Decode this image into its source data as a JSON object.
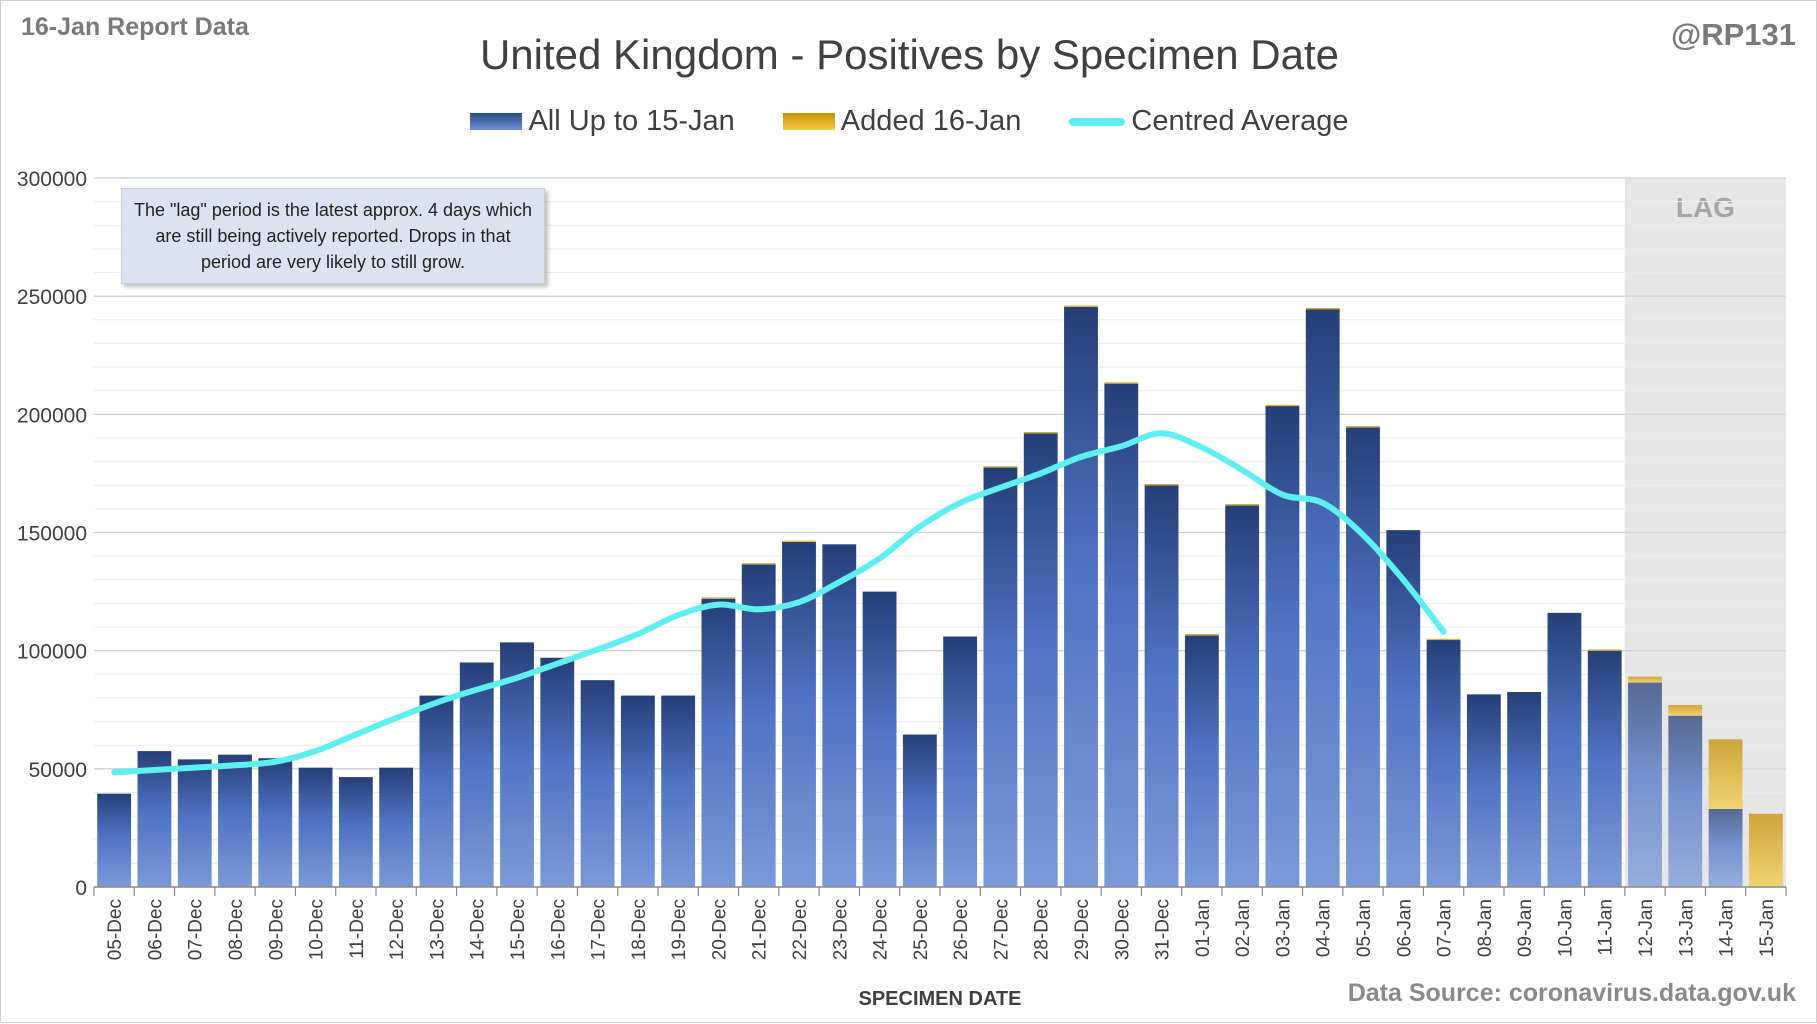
{
  "header": {
    "report_label": "16-Jan Report Data",
    "handle": "@RP131"
  },
  "footer": {
    "source": "Data Source: coronavirus.data.gov.uk"
  },
  "note": "The \"lag\" period is the latest approx. 4 days which are still being actively reported. Drops in that period are very likely to still grow.",
  "colors": {
    "bar_dark": "#2a4a86",
    "bar_light": "#6d8fd8",
    "added": "#e8b21a",
    "average": "#5ef0f0",
    "lag_shade": "#e6e6e6",
    "grid": "#d9d9d9"
  },
  "chart_data": {
    "type": "bar",
    "title": "United Kingdom - Positives by Specimen Date",
    "xlabel": "SPECIMEN DATE",
    "ylabel": "",
    "ylim": [
      0,
      300000
    ],
    "yticks": [
      0,
      50000,
      100000,
      150000,
      200000,
      250000,
      300000
    ],
    "grid": true,
    "legend_position": "top",
    "lag_label": "LAG",
    "lag_categories": [
      "12-Jan",
      "13-Jan",
      "14-Jan",
      "15-Jan"
    ],
    "categories": [
      "05-Dec",
      "06-Dec",
      "07-Dec",
      "08-Dec",
      "09-Dec",
      "10-Dec",
      "11-Dec",
      "12-Dec",
      "13-Dec",
      "14-Dec",
      "15-Dec",
      "16-Dec",
      "17-Dec",
      "18-Dec",
      "19-Dec",
      "20-Dec",
      "21-Dec",
      "22-Dec",
      "23-Dec",
      "24-Dec",
      "25-Dec",
      "26-Dec",
      "27-Dec",
      "28-Dec",
      "29-Dec",
      "30-Dec",
      "31-Dec",
      "01-Jan",
      "02-Jan",
      "03-Jan",
      "04-Jan",
      "05-Jan",
      "06-Jan",
      "07-Jan",
      "08-Jan",
      "09-Jan",
      "10-Jan",
      "11-Jan",
      "12-Jan",
      "13-Jan",
      "14-Jan",
      "15-Jan"
    ],
    "series": [
      {
        "name": "All Up to 15-Jan",
        "kind": "bar",
        "values": [
          39500,
          57500,
          54000,
          56000,
          54500,
          50500,
          46500,
          50500,
          81000,
          95000,
          103500,
          97000,
          87500,
          81000,
          81000,
          122000,
          136500,
          146000,
          145000,
          125000,
          64500,
          106000,
          177500,
          192000,
          245500,
          213000,
          170000,
          106500,
          161500,
          203500,
          244500,
          194500,
          151000,
          104500,
          81500,
          82500,
          116000,
          100000,
          86500,
          72500,
          33000,
          0
        ]
      },
      {
        "name": "Added 16-Jan",
        "kind": "bar",
        "values": [
          0,
          0,
          0,
          0,
          0,
          0,
          0,
          0,
          0,
          0,
          0,
          0,
          0,
          0,
          0,
          500,
          500,
          500,
          0,
          0,
          0,
          0,
          500,
          500,
          500,
          500,
          500,
          500,
          500,
          500,
          500,
          500,
          0,
          500,
          0,
          0,
          0,
          500,
          2500,
          4500,
          29500,
          31000
        ]
      },
      {
        "name": "Centred Average",
        "kind": "line",
        "values": [
          48500,
          49500,
          50500,
          51500,
          53000,
          57500,
          64500,
          71500,
          78000,
          83500,
          88500,
          94500,
          100500,
          107000,
          115000,
          119500,
          117500,
          120500,
          129000,
          139000,
          152500,
          162500,
          169000,
          175000,
          182000,
          186500,
          192000,
          186000,
          176500,
          166000,
          162500,
          149000,
          130000,
          108000,
          null,
          null,
          null,
          null,
          null,
          null,
          null,
          null
        ]
      }
    ]
  }
}
